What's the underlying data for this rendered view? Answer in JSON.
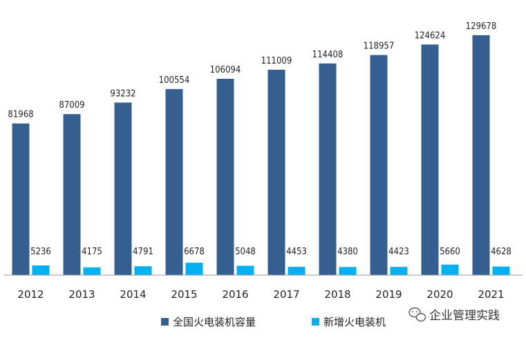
{
  "chart_data": {
    "type": "bar",
    "categories": [
      "2012",
      "2013",
      "2014",
      "2015",
      "2016",
      "2017",
      "2018",
      "2019",
      "2020",
      "2021"
    ],
    "series": [
      {
        "name": "全国火电装机容量",
        "color": "#365F91",
        "values": [
          81968,
          87009,
          93232,
          100554,
          106094,
          111009,
          114408,
          118957,
          124624,
          129678
        ]
      },
      {
        "name": "新增火电装机",
        "color": "#00B0F0",
        "values": [
          5236,
          4175,
          4791,
          6678,
          5048,
          4453,
          4380,
          4423,
          5660,
          4628
        ]
      }
    ],
    "title": "",
    "xlabel": "",
    "ylabel": "",
    "ylim": [
      0,
      133000
    ],
    "grid": false,
    "legend_position": "bottom"
  },
  "watermark": {
    "text": "企业管理实践",
    "icon": "wechat-icon"
  }
}
